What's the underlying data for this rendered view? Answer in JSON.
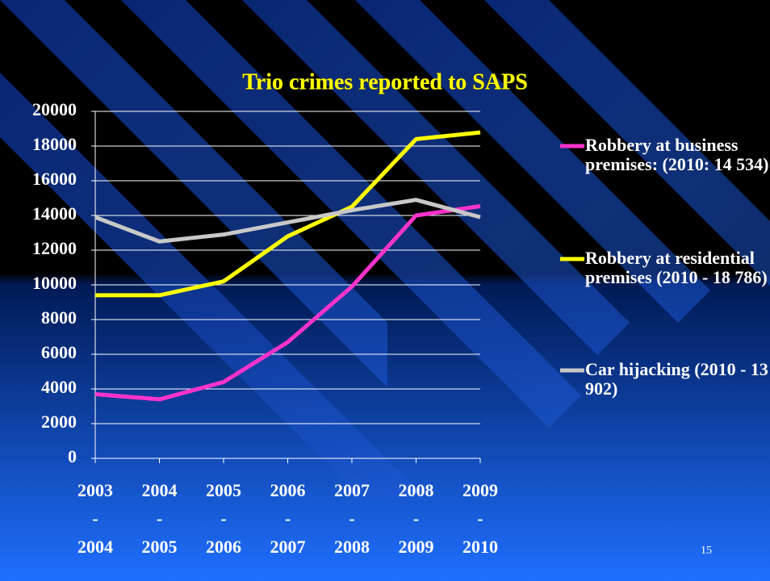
{
  "chart_data": {
    "type": "line",
    "title": "Trio crimes reported to SAPS",
    "categories": [
      "2003 - 2004",
      "2004 - 2005",
      "2005 - 2006",
      "2006 - 2007",
      "2007 - 2008",
      "2008 - 2009",
      "2009 - 2010"
    ],
    "series": [
      {
        "name": "Robbery at business premises: (2010: 14 534)",
        "color": "#ff33cc",
        "values": [
          3700,
          3400,
          4400,
          6700,
          9900,
          14000,
          14534
        ]
      },
      {
        "name": "Robbery at residential premises (2010 - 18 786)",
        "color": "#ffff00",
        "values": [
          9400,
          9400,
          10200,
          12800,
          14500,
          18400,
          18786
        ]
      },
      {
        "name": "Car hijacking (2010 - 13 902)",
        "color": "#c8c8c8",
        "values": [
          13900,
          12500,
          12900,
          13600,
          14300,
          14900,
          13902
        ]
      }
    ],
    "ylim": [
      0,
      20000
    ],
    "yticks": [
      0,
      2000,
      4000,
      6000,
      8000,
      10000,
      12000,
      14000,
      16000,
      18000,
      20000
    ],
    "grid": true,
    "legend": "right",
    "slide_number": "15"
  }
}
